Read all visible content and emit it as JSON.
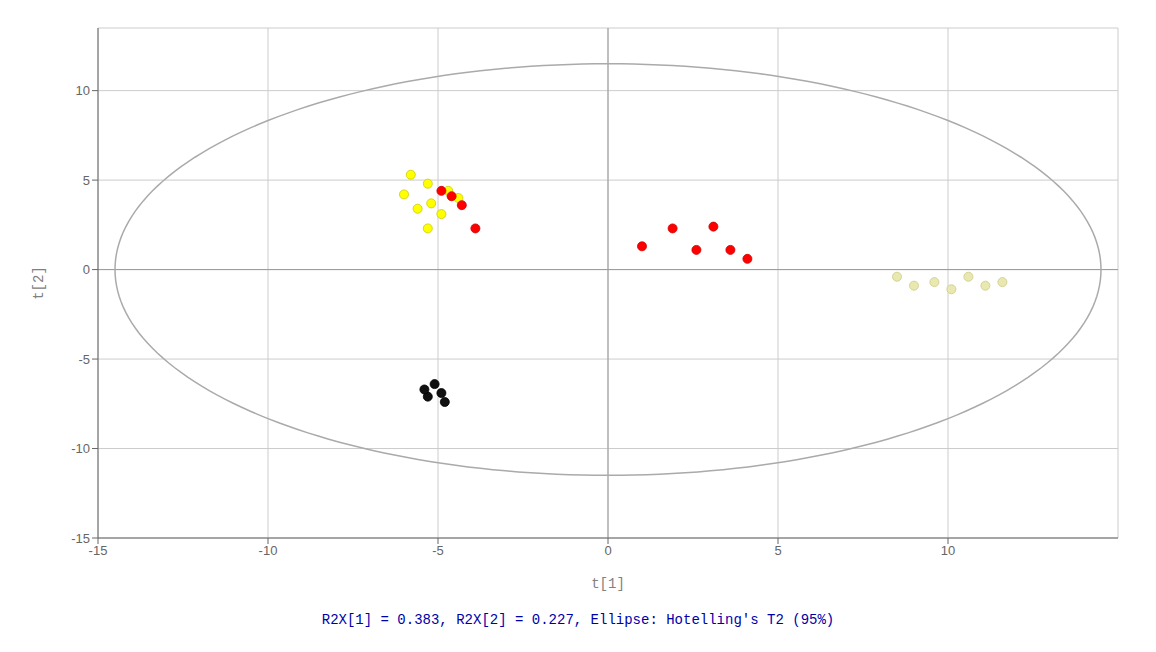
{
  "chart_data": {
    "type": "scatter",
    "xlabel": "t[1]",
    "ylabel": "t[2]",
    "caption": "R2X[1] = 0.383, R2X[2] = 0.227, Ellipse: Hotelling's T2 (95%)",
    "xlim": [
      -15,
      15
    ],
    "ylim": [
      -15,
      13.5
    ],
    "xticks": [
      -15,
      -10,
      -5,
      0,
      5,
      10
    ],
    "yticks": [
      -15,
      -10,
      -5,
      0,
      5,
      10
    ],
    "grid": true,
    "reference_lines": [
      {
        "axis": "x",
        "value": 0
      },
      {
        "axis": "y",
        "value": 0
      }
    ],
    "ellipse": {
      "cx": 0,
      "cy": 0,
      "rx": 14.5,
      "ry": 11.5,
      "color": "#AAAAAA"
    },
    "series": [
      {
        "color": "#FFFF00",
        "edgecolor": "#CCCC00",
        "points": [
          [
            -5.8,
            5.3
          ],
          [
            -5.3,
            4.8
          ],
          [
            -6.0,
            4.2
          ],
          [
            -5.2,
            3.7
          ],
          [
            -4.9,
            3.1
          ],
          [
            -5.6,
            3.4
          ],
          [
            -4.7,
            4.4
          ],
          [
            -5.3,
            2.3
          ],
          [
            -4.4,
            4.0
          ]
        ]
      },
      {
        "color": "#FF0000",
        "edgecolor": "#CC0000",
        "points": [
          [
            -4.9,
            4.4
          ],
          [
            -4.6,
            4.1
          ],
          [
            -4.3,
            3.6
          ],
          [
            -3.9,
            2.3
          ],
          [
            1.0,
            1.3
          ],
          [
            1.9,
            2.3
          ],
          [
            2.6,
            1.1
          ],
          [
            3.1,
            2.4
          ],
          [
            4.1,
            0.6
          ],
          [
            3.6,
            1.1
          ]
        ]
      },
      {
        "color": "#111111",
        "edgecolor": "#000000",
        "points": [
          [
            -5.1,
            -6.4
          ],
          [
            -4.9,
            -6.9
          ],
          [
            -5.3,
            -7.1
          ],
          [
            -4.8,
            -7.4
          ],
          [
            -5.4,
            -6.7
          ]
        ]
      },
      {
        "color": "#E8E8B0",
        "edgecolor": "#CCCC88",
        "points": [
          [
            8.5,
            -0.4
          ],
          [
            9.0,
            -0.9
          ],
          [
            9.6,
            -0.7
          ],
          [
            10.1,
            -1.1
          ],
          [
            10.6,
            -0.4
          ],
          [
            11.1,
            -0.9
          ],
          [
            11.6,
            -0.7
          ]
        ]
      }
    ]
  }
}
